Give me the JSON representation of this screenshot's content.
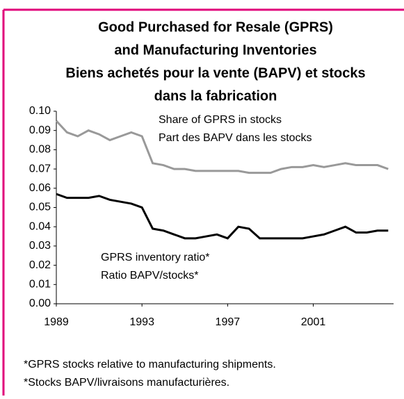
{
  "chart_data": {
    "type": "line",
    "title": [
      "Good Purchased for Resale (GPRS)",
      "and Manufacturing Inventories",
      "Biens achetés pour la vente (BAPV) et stocks",
      "dans la fabrication"
    ],
    "x": [
      1989,
      1989.5,
      1990,
      1990.5,
      1991,
      1991.5,
      1992,
      1992.5,
      1993,
      1993.5,
      1994,
      1994.5,
      1995,
      1995.5,
      1996,
      1996.5,
      1997,
      1997.5,
      1998,
      1998.5,
      1999,
      1999.5,
      2000,
      2000.5,
      2001,
      2001.5,
      2002,
      2002.5,
      2003,
      2003.5,
      2004,
      2004.5
    ],
    "series": [
      {
        "name": "Share of GPRS in stocks",
        "color": "#999999",
        "values": [
          0.095,
          0.089,
          0.087,
          0.09,
          0.088,
          0.085,
          0.087,
          0.089,
          0.087,
          0.073,
          0.072,
          0.07,
          0.07,
          0.069,
          0.069,
          0.069,
          0.069,
          0.069,
          0.068,
          0.068,
          0.068,
          0.07,
          0.071,
          0.071,
          0.072,
          0.071,
          0.072,
          0.073,
          0.072,
          0.072,
          0.072,
          0.07
        ]
      },
      {
        "name": "GPRS inventory ratio*",
        "color": "#000000",
        "values": [
          0.057,
          0.055,
          0.055,
          0.055,
          0.056,
          0.054,
          0.053,
          0.052,
          0.05,
          0.039,
          0.038,
          0.036,
          0.034,
          0.034,
          0.035,
          0.036,
          0.034,
          0.04,
          0.039,
          0.034,
          0.034,
          0.034,
          0.034,
          0.034,
          0.035,
          0.036,
          0.038,
          0.04,
          0.037,
          0.037,
          0.038,
          0.038
        ]
      }
    ],
    "annotations": [
      [
        "Share of GPRS in stocks",
        "Part des BAPV dans les stocks"
      ],
      [
        "GPRS inventory ratio*",
        "Ratio BAPV/stocks*"
      ]
    ],
    "footnotes": [
      "*GPRS stocks relative to manufacturing shipments.",
      "*Stocks BAPV/livraisons manufacturières."
    ],
    "xlim": [
      1989,
      2004.75
    ],
    "xticks": [
      1989,
      1993,
      1997,
      2001
    ],
    "ylim": [
      0,
      0.1
    ],
    "yticks": [
      {
        "value": 0,
        "label": "0.00"
      },
      {
        "value": 0.01,
        "label": "0.01"
      },
      {
        "value": 0.02,
        "label": "0.02"
      },
      {
        "value": 0.03,
        "label": "0.03"
      },
      {
        "value": 0.04,
        "label": "0.04"
      },
      {
        "value": 0.05,
        "label": "0.05"
      },
      {
        "value": 0.06,
        "label": "0.06"
      },
      {
        "value": 0.07,
        "label": "0.07"
      },
      {
        "value": 0.08,
        "label": "0.08"
      },
      {
        "value": 0.09,
        "label": "0.09"
      },
      {
        "value": 0.1,
        "label": "0.10"
      }
    ],
    "grid": false
  }
}
